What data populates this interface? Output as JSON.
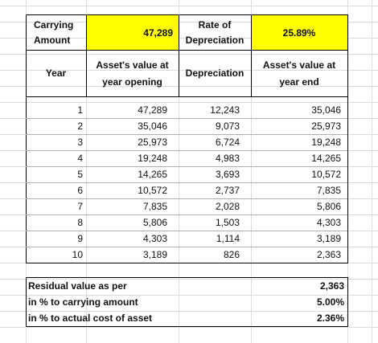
{
  "header": {
    "carrying_amount_label": [
      "Carrying",
      "Amount"
    ],
    "carrying_amount": "47,289",
    "rate_label": [
      "Rate of",
      "Depreciation"
    ],
    "rate": "25.89%"
  },
  "table": {
    "columns": [
      [
        "Year"
      ],
      [
        "Asset's value at",
        "year opening"
      ],
      [
        "Depreciation"
      ],
      [
        "Asset's value at",
        "year end"
      ]
    ],
    "rows": [
      [
        "1",
        "47,289",
        "12,243",
        "35,046"
      ],
      [
        "2",
        "35,046",
        "9,073",
        "25,973"
      ],
      [
        "3",
        "25,973",
        "6,724",
        "19,248"
      ],
      [
        "4",
        "19,248",
        "4,983",
        "14,265"
      ],
      [
        "5",
        "14,265",
        "3,693",
        "10,572"
      ],
      [
        "6",
        "10,572",
        "2,737",
        "7,835"
      ],
      [
        "7",
        "7,835",
        "2,028",
        "5,806"
      ],
      [
        "8",
        "5,806",
        "1,503",
        "4,303"
      ],
      [
        "9",
        "4,303",
        "1,114",
        "3,189"
      ],
      [
        "10",
        "3,189",
        "826",
        "2,363"
      ]
    ]
  },
  "summary": [
    {
      "label": "Residual value as per",
      "value": "2,363"
    },
    {
      "label": "in % to carrying amount",
      "value": "5.00%"
    },
    {
      "label": "in % to actual cost of asset",
      "value": "2.36%"
    }
  ]
}
